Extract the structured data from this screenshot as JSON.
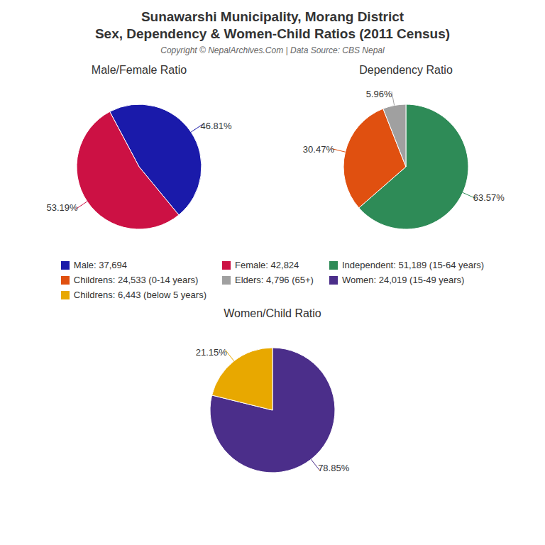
{
  "title": [
    "Sunawarshi Municipality, Morang District",
    "Sex, Dependency & Women-Child Ratios (2011 Census)"
  ],
  "subtitle": "Copyright © NepalArchives.Com | Data Source: CBS Nepal",
  "legend": "center",
  "chart_data": [
    {
      "type": "pie",
      "title": "Male/Female Ratio",
      "categories": [
        "Male: 37,694",
        "Female: 42,824"
      ],
      "values": [
        46.81,
        53.19
      ],
      "value_labels": [
        "46.81%",
        "53.19%"
      ],
      "colors": [
        "#1a1aaa",
        "#cc1144"
      ],
      "data_labels": true
    },
    {
      "type": "pie",
      "title": "Dependency Ratio",
      "categories": [
        "Independent: 51,189 (15-64 years)",
        "Childrens: 24,533 (0-14 years)",
        "Elders: 4,796 (65+)"
      ],
      "values": [
        63.57,
        30.47,
        5.96
      ],
      "value_labels": [
        "63.57%",
        "30.47%",
        "5.96%"
      ],
      "colors": [
        "#2e8b57",
        "#e05010",
        "#a0a0a0"
      ],
      "data_labels": true
    },
    {
      "type": "pie",
      "title": "Women/Child Ratio",
      "categories": [
        "Women: 24,019 (15-49 years)",
        "Childrens: 6,443 (below 5 years)"
      ],
      "values": [
        78.85,
        21.15
      ],
      "value_labels": [
        "78.85%",
        "21.15%"
      ],
      "colors": [
        "#4b2e8a",
        "#e8a800"
      ],
      "data_labels": true
    }
  ]
}
